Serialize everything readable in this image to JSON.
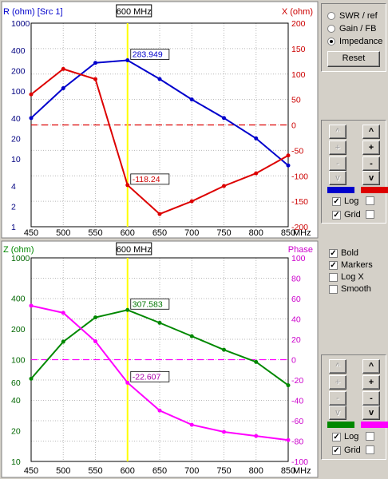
{
  "mode_options": [
    {
      "label": "SWR / ref",
      "selected": false
    },
    {
      "label": "Gain / FB",
      "selected": false
    },
    {
      "label": "Impedance",
      "selected": true
    }
  ],
  "reset_label": "Reset",
  "axis_buttons": {
    "up": "^",
    "plus": "+",
    "minus": "-",
    "down": "v"
  },
  "top_panel": {
    "left_color": "#0000cc",
    "right_color": "#dd0000",
    "log_label": "Log",
    "log_checked": true,
    "log_right_checked": false,
    "grid_label": "Grid",
    "grid_checked": true,
    "grid_right_checked": false
  },
  "options": [
    {
      "label": "Bold",
      "checked": true
    },
    {
      "label": "Markers",
      "checked": true
    },
    {
      "label": "Log X",
      "checked": false
    },
    {
      "label": "Smooth",
      "checked": false
    }
  ],
  "bottom_panel": {
    "left_color": "#008800",
    "right_color": "#ff00ff",
    "log_label": "Log",
    "log_checked": true,
    "log_right_checked": false,
    "grid_label": "Grid",
    "grid_checked": true,
    "grid_right_checked": false
  },
  "chart_data": [
    {
      "type": "line",
      "marker_label": "600 MHz",
      "marker_x": 600,
      "x_ticks": [
        "450",
        "500",
        "550",
        "600",
        "650",
        "700",
        "750",
        "800",
        "850"
      ],
      "x_unit": "MHz",
      "xlim": [
        450,
        850
      ],
      "left_axis": {
        "label": "R (ohm) [Src 1]",
        "scale": "log",
        "ylim": [
          1,
          1000
        ],
        "ticks": [
          "1000",
          "400",
          "200",
          "100",
          "40",
          "20",
          "10",
          "4",
          "2",
          "1"
        ],
        "tick_values": [
          1000,
          400,
          200,
          100,
          40,
          20,
          10,
          4,
          2,
          1
        ]
      },
      "right_axis": {
        "label": "X (ohm)",
        "ylim": [
          -200,
          200
        ],
        "ticks": [
          "200",
          "150",
          "100",
          "50",
          "0",
          "-50",
          "-100",
          "-150",
          "-200"
        ],
        "tick_values": [
          200,
          150,
          100,
          50,
          0,
          -50,
          -100,
          -150,
          -200
        ]
      },
      "series": [
        {
          "axis": "left",
          "color": "#0000cc",
          "x": [
            450,
            500,
            550,
            600,
            650,
            700,
            750,
            800,
            850
          ],
          "values": [
            40,
            110,
            260,
            283.949,
            150,
            75,
            40,
            20,
            8
          ]
        },
        {
          "axis": "right",
          "color": "#dd0000",
          "x": [
            450,
            500,
            550,
            600,
            650,
            700,
            750,
            800,
            850
          ],
          "values": [
            60,
            110,
            90,
            -118.24,
            -175,
            -150,
            -120,
            -95,
            -60
          ]
        }
      ],
      "zero_line": 0,
      "annotations": [
        {
          "series": 0,
          "x": 600,
          "text": "283.949",
          "color": "#0000cc"
        },
        {
          "series": 1,
          "x": 600,
          "text": "-118.24",
          "color": "#cc0000"
        }
      ]
    },
    {
      "type": "line",
      "marker_label": "600 MHz",
      "marker_x": 600,
      "x_ticks": [
        "450",
        "500",
        "550",
        "600",
        "650",
        "700",
        "750",
        "800",
        "850"
      ],
      "x_unit": "MHz",
      "xlim": [
        450,
        850
      ],
      "left_axis": {
        "label": "Z (ohm)",
        "scale": "log",
        "ylim": [
          10,
          1000
        ],
        "ticks": [
          "1000",
          "400",
          "200",
          "100",
          "60",
          "40",
          "20",
          "10"
        ],
        "tick_values": [
          1000,
          400,
          200,
          100,
          60,
          40,
          20,
          10
        ]
      },
      "right_axis": {
        "label": "Phase",
        "ylim": [
          -100,
          100
        ],
        "ticks": [
          "100",
          "80",
          "60",
          "40",
          "20",
          "0",
          "-20",
          "-40",
          "-60",
          "-80",
          "-100"
        ],
        "tick_values": [
          100,
          80,
          60,
          40,
          20,
          0,
          -20,
          -40,
          -60,
          -80,
          -100
        ]
      },
      "series": [
        {
          "axis": "left",
          "color": "#008800",
          "x": [
            450,
            500,
            550,
            600,
            650,
            700,
            750,
            800,
            850
          ],
          "values": [
            65,
            150,
            260,
            307.583,
            230,
            170,
            125,
            95,
            56
          ]
        },
        {
          "axis": "right",
          "color": "#ff00ff",
          "x": [
            450,
            500,
            550,
            600,
            650,
            700,
            750,
            800,
            850
          ],
          "values": [
            53,
            46,
            18,
            -22.607,
            -50,
            -64,
            -71,
            -75,
            -79
          ]
        }
      ],
      "zero_line": 0,
      "annotations": [
        {
          "series": 0,
          "x": 600,
          "text": "307.583",
          "color": "#007700"
        },
        {
          "series": 1,
          "x": 600,
          "text": "-22.607",
          "color": "#aa00aa"
        }
      ]
    }
  ]
}
